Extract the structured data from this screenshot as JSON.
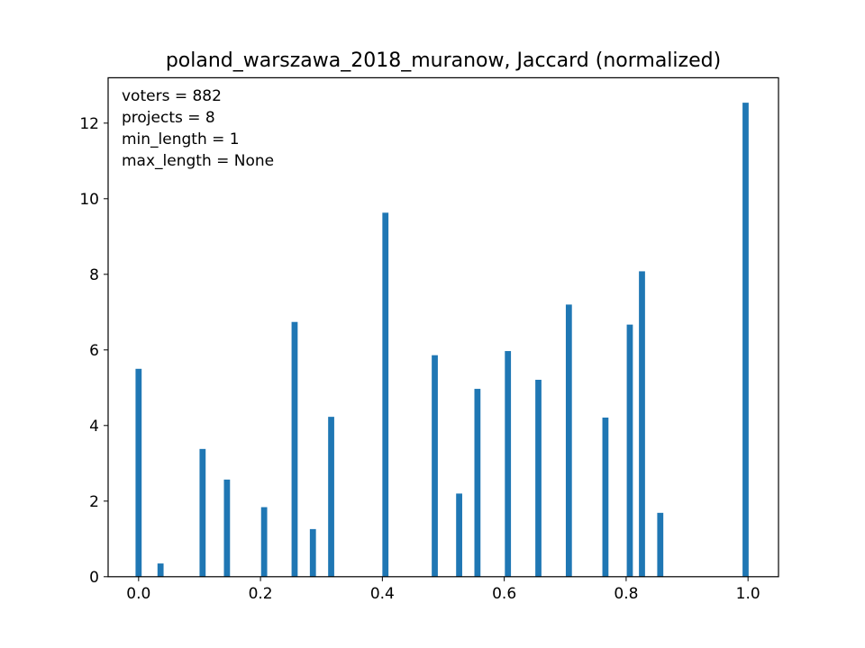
{
  "chart_data": {
    "type": "bar",
    "title": "poland_warszawa_2018_muranow, Jaccard (normalized)",
    "xlabel": "",
    "ylabel": "",
    "xlim": [
      -0.05,
      1.05
    ],
    "ylim": [
      0,
      13.2
    ],
    "bar_width": 0.01,
    "color": "#1f77b4",
    "grid": false,
    "x_ticks": [
      0.0,
      0.2,
      0.4,
      0.6,
      0.8,
      1.0
    ],
    "x_tick_labels": [
      "0.0",
      "0.2",
      "0.4",
      "0.6",
      "0.8",
      "1.0"
    ],
    "y_ticks": [
      0,
      2,
      4,
      6,
      8,
      10,
      12
    ],
    "y_tick_labels": [
      "0",
      "2",
      "4",
      "6",
      "8",
      "10",
      "12"
    ],
    "annotations": [
      "voters = 882",
      "projects = 8",
      "min_length = 1",
      "max_length = None"
    ],
    "x": [
      0.0,
      0.036,
      0.105,
      0.145,
      0.206,
      0.256,
      0.286,
      0.316,
      0.405,
      0.486,
      0.526,
      0.556,
      0.606,
      0.656,
      0.706,
      0.766,
      0.806,
      0.826,
      0.856,
      0.996
    ],
    "values": [
      5.5,
      0.35,
      3.38,
      2.57,
      1.84,
      6.74,
      1.26,
      4.23,
      9.63,
      5.86,
      2.2,
      4.97,
      5.97,
      5.21,
      7.2,
      4.21,
      6.67,
      8.08,
      1.69,
      12.54
    ]
  }
}
